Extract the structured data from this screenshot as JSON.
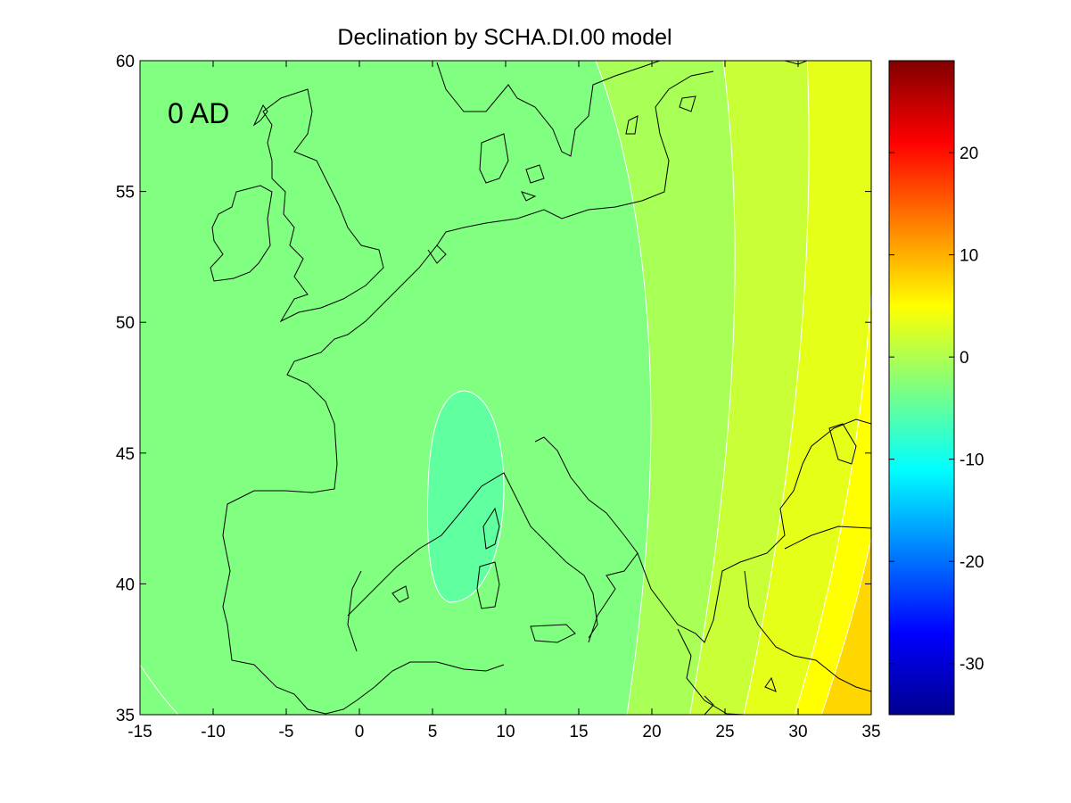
{
  "figure": {
    "title": "Declination by SCHA.DI.00 model",
    "epoch_label": "0 AD"
  },
  "map": {
    "x_ticks": [
      "-15",
      "-10",
      "-5",
      "0",
      "5",
      "10",
      "15",
      "20",
      "25",
      "30",
      "35"
    ],
    "y_ticks": [
      "60",
      "55",
      "50",
      "45",
      "40",
      "35"
    ],
    "xlim": [
      -15,
      35
    ],
    "ylim": [
      35,
      60
    ],
    "fill_colors": {
      "band_minus5_0": "#80ff80",
      "band_0_2": "#a8ff55",
      "band_2_4": "#c8ff37",
      "band_4_6": "#e6ff19",
      "band_6_8": "#ffff00",
      "band_8_10": "#ffd700",
      "band_minus8_minus5": "#60ffa0",
      "coastline": "#000000",
      "contour_line": "#ffffff"
    }
  },
  "colorbar": {
    "ticks": [
      "20",
      "10",
      "0",
      "-10",
      "-20",
      "-30"
    ],
    "range": [
      -35,
      29
    ],
    "colormap": "jet"
  }
}
